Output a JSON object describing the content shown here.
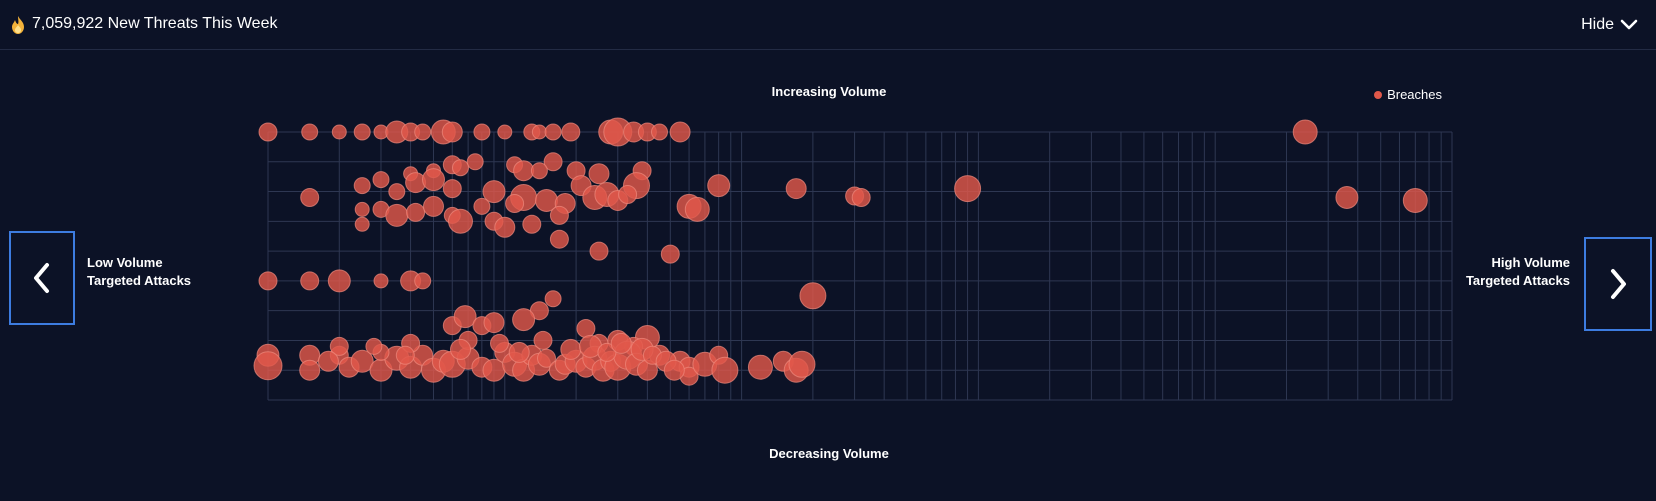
{
  "header": {
    "title": "7,059,922 New Threats This Week",
    "hide_label": "Hide"
  },
  "labels": {
    "top": "Increasing Volume",
    "bottom": "Decreasing Volume",
    "left": [
      "Low Volume",
      "Targeted Attacks"
    ],
    "right": [
      "High Volume",
      "Targeted Attacks"
    ]
  },
  "colors": {
    "background": "#0c1226",
    "bubble": "#e0584a",
    "grid": "#2e3752",
    "nav_border": "#3d7ce0"
  },
  "icons": {
    "header": "flame-icon",
    "hide": "chevron-down-icon",
    "prev": "chevron-left-icon",
    "next": "chevron-right-icon"
  },
  "chart_data": {
    "type": "scatter",
    "legend": [
      "Breaches"
    ],
    "legend_position": "top-right",
    "grid": true,
    "x_scale": "log",
    "series": [
      {
        "name": "Breaches",
        "color": "#e0584a",
        "points": [
          [
            1,
            9,
            9
          ],
          [
            1.5,
            9,
            8
          ],
          [
            2,
            9,
            7
          ],
          [
            2.5,
            9,
            8
          ],
          [
            3,
            9,
            7
          ],
          [
            3.5,
            9,
            11
          ],
          [
            4,
            9,
            9
          ],
          [
            4.5,
            9,
            8
          ],
          [
            5.5,
            9,
            12
          ],
          [
            6,
            9,
            10
          ],
          [
            8,
            9,
            8
          ],
          [
            10,
            9,
            7
          ],
          [
            13,
            9,
            8
          ],
          [
            14,
            9,
            7
          ],
          [
            16,
            9,
            8
          ],
          [
            19,
            9,
            9
          ],
          [
            28,
            9,
            12
          ],
          [
            30,
            9,
            14
          ],
          [
            35,
            9,
            10
          ],
          [
            40,
            9,
            9
          ],
          [
            45,
            9,
            8
          ],
          [
            55,
            9,
            10
          ],
          [
            24000,
            9,
            12
          ],
          [
            7.5,
            8,
            8
          ],
          [
            16,
            8,
            9
          ],
          [
            5,
            7.7,
            7
          ],
          [
            6,
            7.9,
            9
          ],
          [
            6.5,
            7.8,
            8
          ],
          [
            11,
            7.9,
            8
          ],
          [
            12,
            7.7,
            10
          ],
          [
            14,
            7.7,
            8
          ],
          [
            20,
            7.7,
            9
          ],
          [
            25,
            7.6,
            10
          ],
          [
            38,
            7.7,
            9
          ],
          [
            36,
            7.2,
            13
          ],
          [
            80,
            7.2,
            11
          ],
          [
            170,
            7.1,
            10
          ],
          [
            900,
            7.1,
            13
          ],
          [
            4,
            7.6,
            7
          ],
          [
            3,
            7.4,
            8
          ],
          [
            3.5,
            7,
            8
          ],
          [
            4.2,
            7.3,
            10
          ],
          [
            5,
            7.4,
            11
          ],
          [
            6,
            7.1,
            9
          ],
          [
            9,
            7.0,
            11
          ],
          [
            12,
            6.8,
            13
          ],
          [
            15,
            6.7,
            11
          ],
          [
            18,
            6.6,
            10
          ],
          [
            21,
            7.2,
            10
          ],
          [
            24,
            6.8,
            12
          ],
          [
            27,
            6.9,
            12
          ],
          [
            30,
            6.7,
            10
          ],
          [
            33,
            6.9,
            9
          ],
          [
            1.5,
            6.8,
            9
          ],
          [
            2.5,
            7.2,
            8
          ],
          [
            300,
            6.85,
            9
          ],
          [
            320,
            6.8,
            9
          ],
          [
            36000,
            6.8,
            11
          ],
          [
            70000,
            6.7,
            12
          ],
          [
            3,
            6.4,
            8
          ],
          [
            3.5,
            6.2,
            11
          ],
          [
            4.2,
            6.3,
            9
          ],
          [
            5,
            6.5,
            10
          ],
          [
            6,
            6.2,
            8
          ],
          [
            8,
            6.5,
            8
          ],
          [
            9,
            6.0,
            9
          ],
          [
            11,
            6.6,
            9
          ],
          [
            2.5,
            6.4,
            7
          ],
          [
            2.5,
            5.9,
            7
          ],
          [
            13,
            5.9,
            9
          ],
          [
            17,
            6.2,
            9
          ],
          [
            60,
            6.5,
            12
          ],
          [
            65,
            6.4,
            12
          ],
          [
            10,
            5.8,
            10
          ],
          [
            6.5,
            6.0,
            12
          ],
          [
            25,
            5.0,
            9
          ],
          [
            50,
            4.9,
            9
          ],
          [
            17,
            5.4,
            9
          ],
          [
            1,
            4,
            9
          ],
          [
            1.5,
            4,
            9
          ],
          [
            2,
            4,
            11
          ],
          [
            3,
            4,
            7
          ],
          [
            4,
            4,
            10
          ],
          [
            4.5,
            4,
            8
          ],
          [
            200,
            3.5,
            13
          ],
          [
            14,
            3.0,
            9
          ],
          [
            16,
            3.4,
            8
          ],
          [
            6,
            2.5,
            9
          ],
          [
            6.8,
            2.8,
            11
          ],
          [
            8,
            2.5,
            9
          ],
          [
            9,
            2.6,
            10
          ],
          [
            12,
            2.7,
            11
          ],
          [
            22,
            2.4,
            9
          ],
          [
            40,
            2.1,
            12
          ],
          [
            25,
            1.9,
            9
          ],
          [
            30,
            2.0,
            10
          ],
          [
            35,
            1.8,
            9
          ],
          [
            45,
            1.5,
            10
          ],
          [
            55,
            1.3,
            10
          ],
          [
            60,
            1.1,
            10
          ],
          [
            1,
            1.5,
            11
          ],
          [
            1,
            1.15,
            14
          ],
          [
            1.5,
            1.5,
            10
          ],
          [
            1.5,
            1.0,
            10
          ],
          [
            2,
            1.5,
            9
          ],
          [
            2.2,
            1.1,
            10
          ],
          [
            2.5,
            1.3,
            11
          ],
          [
            3,
            1.0,
            11
          ],
          [
            3.5,
            1.4,
            12
          ],
          [
            4,
            1.1,
            11
          ],
          [
            4.5,
            1.5,
            10
          ],
          [
            5,
            1.0,
            12
          ],
          [
            5.5,
            1.3,
            11
          ],
          [
            6,
            1.2,
            13
          ],
          [
            7,
            1.4,
            11
          ],
          [
            8,
            1.1,
            10
          ],
          [
            9,
            1.0,
            11
          ],
          [
            10,
            1.6,
            10
          ],
          [
            11,
            1.2,
            12
          ],
          [
            12,
            1.0,
            11
          ],
          [
            13,
            1.5,
            10
          ],
          [
            14,
            1.2,
            11
          ],
          [
            15,
            1.4,
            9
          ],
          [
            17,
            1.0,
            10
          ],
          [
            18,
            1.2,
            10
          ],
          [
            20,
            1.3,
            11
          ],
          [
            22,
            1.1,
            10
          ],
          [
            24,
            1.4,
            12
          ],
          [
            26,
            1.0,
            11
          ],
          [
            28,
            1.3,
            10
          ],
          [
            30,
            1.1,
            13
          ],
          [
            33,
            1.5,
            14
          ],
          [
            36,
            1.2,
            11
          ],
          [
            40,
            1.0,
            10
          ],
          [
            60,
            0.8,
            9
          ],
          [
            70,
            1.2,
            12
          ],
          [
            80,
            1.5,
            9
          ],
          [
            85,
            1.0,
            13
          ],
          [
            120,
            1.1,
            12
          ],
          [
            150,
            1.3,
            10
          ],
          [
            170,
            1.0,
            12
          ],
          [
            180,
            1.2,
            13
          ],
          [
            2,
            1.8,
            9
          ],
          [
            3,
            1.6,
            8
          ],
          [
            4,
            1.9,
            9
          ],
          [
            7,
            2.0,
            9
          ],
          [
            1.8,
            1.3,
            10
          ],
          [
            2.8,
            1.8,
            8
          ],
          [
            3.8,
            1.5,
            9
          ],
          [
            6.5,
            1.7,
            10
          ],
          [
            9.5,
            1.9,
            9
          ],
          [
            11.5,
            1.6,
            10
          ],
          [
            14.5,
            2.0,
            9
          ],
          [
            19,
            1.7,
            10
          ],
          [
            23,
            1.8,
            11
          ],
          [
            27,
            1.6,
            9
          ],
          [
            31,
            1.9,
            10
          ],
          [
            38,
            1.7,
            11
          ],
          [
            42,
            1.5,
            9
          ],
          [
            48,
            1.3,
            10
          ],
          [
            52,
            1.0,
            10
          ]
        ]
      }
    ]
  }
}
